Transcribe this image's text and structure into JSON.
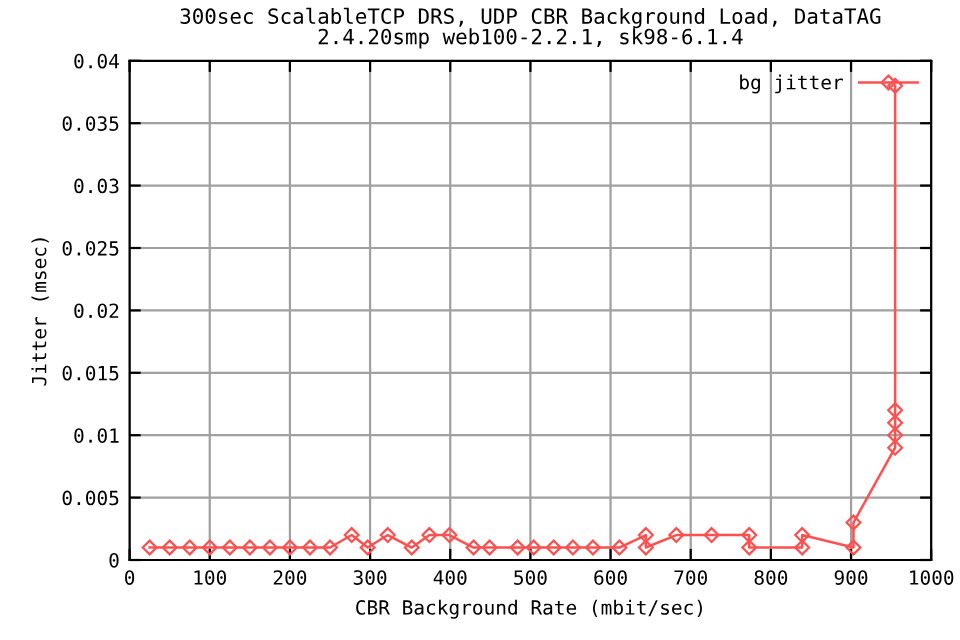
{
  "chart_data": {
    "type": "line",
    "title": "300sec ScalableTCP DRS, UDP CBR Background Load, DataTAG\n2.4.20smp web100-2.2.1, sk98-6.1.4",
    "xlabel": "CBR Background Rate (mbit/sec)",
    "ylabel": "Jitter (msec)",
    "series": [
      {
        "name": "bg jitter",
        "color": "#ff5050",
        "x": [
          25,
          50,
          75,
          100,
          125,
          150,
          175,
          200,
          225,
          250,
          277,
          297,
          322,
          352,
          374,
          399,
          429,
          449,
          484,
          504,
          529,
          553,
          578,
          611,
          644,
          644,
          682,
          726,
          773,
          773,
          839,
          839,
          903,
          903,
          955,
          955,
          955,
          955,
          955
        ],
        "values": [
          0.001,
          0.001,
          0.001,
          0.001,
          0.001,
          0.001,
          0.001,
          0.001,
          0.001,
          0.001,
          0.002,
          0.001,
          0.002,
          0.001,
          0.002,
          0.002,
          0.001,
          0.001,
          0.001,
          0.001,
          0.001,
          0.001,
          0.001,
          0.001,
          0.002,
          0.001,
          0.002,
          0.002,
          0.002,
          0.001,
          0.001,
          0.002,
          0.001,
          0.003,
          0.009,
          0.01,
          0.011,
          0.012,
          0.038
        ]
      }
    ],
    "xlim": [
      0,
      1000
    ],
    "xticks": [
      0,
      100,
      200,
      300,
      400,
      500,
      600,
      700,
      800,
      900,
      1000
    ],
    "ylim": [
      0,
      0.04
    ],
    "yticks": [
      0,
      0.005,
      0.01,
      0.015,
      0.02,
      0.025,
      0.03,
      0.035,
      0.04
    ],
    "grid": true,
    "legend": "top right",
    "marker": "diamond",
    "line_style": "solid"
  }
}
